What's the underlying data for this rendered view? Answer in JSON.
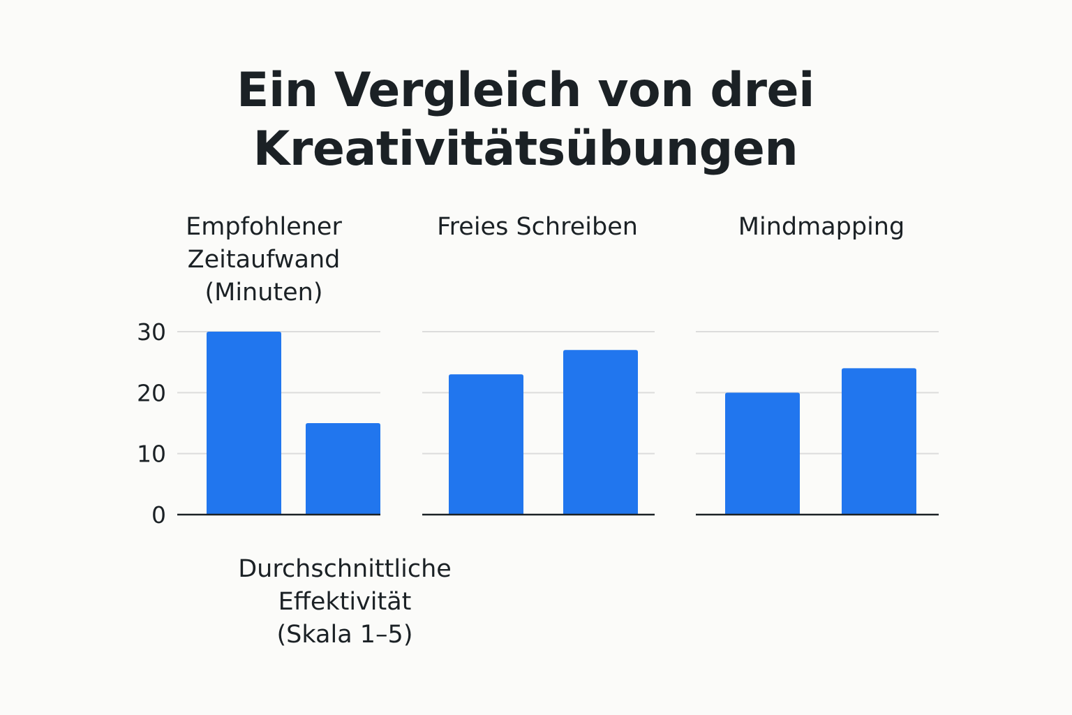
{
  "chart_data": {
    "type": "bar",
    "title_lines": [
      "Ein Vergleich von drei",
      "Kreativitätsübungen"
    ],
    "panels": [
      {
        "label_lines": [
          "Empfohlener",
          "Zeitaufwand",
          "(Minuten)"
        ],
        "values": [
          30,
          15
        ]
      },
      {
        "label_lines": [
          "Freies Schreiben"
        ],
        "values": [
          23,
          27
        ]
      },
      {
        "label_lines": [
          "Mindmapping"
        ],
        "values": [
          20,
          24
        ]
      }
    ],
    "bottom_label_lines": [
      "Durchschnittliche",
      "Effektivität",
      "(Skala 1–5)"
    ],
    "y_ticks": [
      "0",
      "10",
      "20",
      "30"
    ],
    "ylim": [
      0,
      30
    ],
    "grid": true,
    "bar_color": "#2176ee",
    "gridline_color": "#dcdcdc",
    "axis_color": "#1b2125"
  }
}
